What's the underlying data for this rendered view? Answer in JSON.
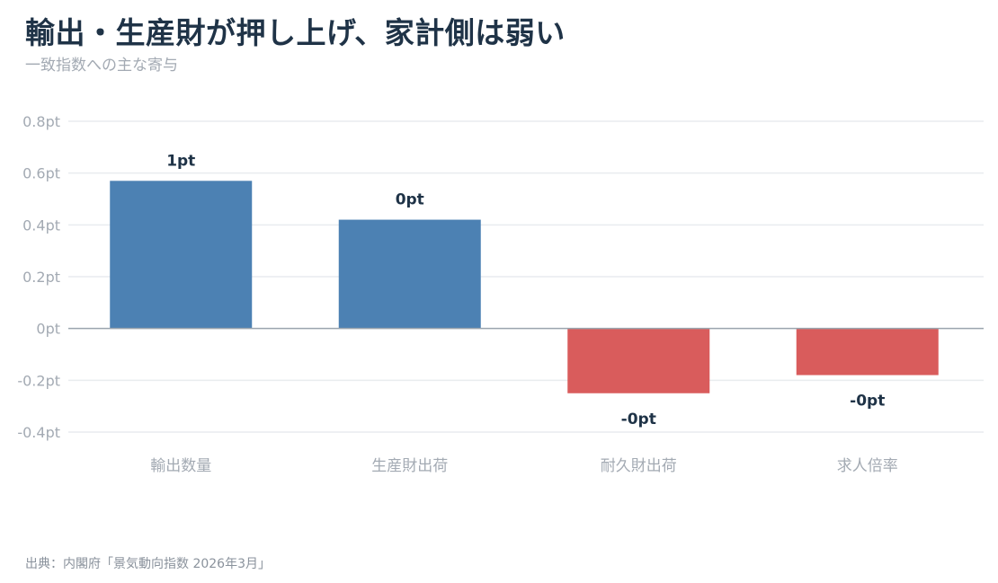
{
  "header": {
    "title": "輸出・生産財が押し上げ、家計側は弱い",
    "subtitle": "一致指数への主な寄与"
  },
  "footer": {
    "source": "出典：内閣府「景気動向指数 2026年3月」"
  },
  "chart_data": {
    "type": "bar",
    "categories": [
      "輸出数量",
      "生産財出荷",
      "耐久財出荷",
      "求人倍率"
    ],
    "values": [
      0.57,
      0.42,
      -0.25,
      -0.18
    ],
    "data_labels": [
      "1pt",
      "0pt",
      "-0pt",
      "-0pt"
    ],
    "y_ticks": [
      0.8,
      0.6,
      0.4,
      0.2,
      0,
      -0.2,
      -0.4
    ],
    "y_tick_labels": [
      "0.8pt",
      "0.6pt",
      "0.4pt",
      "0.2pt",
      "0pt",
      "-0.2pt",
      "-0.4pt"
    ],
    "ylim": [
      -0.4,
      0.8
    ],
    "grid": true,
    "colors": {
      "positive": "#4c81b3",
      "negative": "#d95c5c",
      "grid": "#e9ecef",
      "zero_line": "#9aa4ae"
    }
  }
}
